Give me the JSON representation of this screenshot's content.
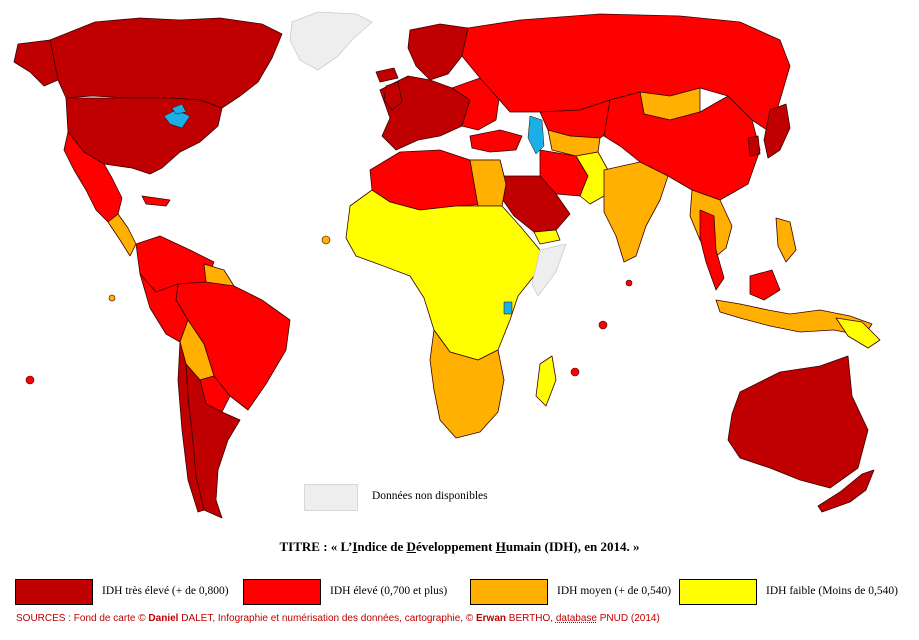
{
  "title": {
    "prefix": "TITRE : « L’",
    "w1_first": "I",
    "w1_rest": "ndice de ",
    "w2_first": "D",
    "w2_rest": "éveloppement ",
    "w3_first": "H",
    "w3_rest": "umain (IDH), en 2014. »"
  },
  "legend": {
    "items": [
      {
        "label": "IDH très élevé  (+ de 0,800)",
        "color": "#c00000"
      },
      {
        "label": "IDH élevé (0,700 et plus)",
        "color": "#ff0000"
      },
      {
        "label": "IDH moyen (+ de 0,540)",
        "color": "#ffb000"
      },
      {
        "label": "IDH faible (Moins de 0,540)",
        "color": "#ffff00"
      }
    ],
    "no_data": {
      "label": "Données non disponibles",
      "color": "#eeeeee"
    }
  },
  "sources": {
    "part1": "SOURCES : Fond de carte © ",
    "author1_first": "Daniel",
    "author1_last": " DALET, Infographie et numérisation des données, cartographie, © ",
    "author2_first": "Erwan",
    "author2_last": " BERTHO, ",
    "database": "database",
    "part_end": " PNUD (2014)"
  },
  "colors": {
    "very_high": "#c00000",
    "high": "#ff0000",
    "medium": "#ffb000",
    "low": "#ffff00",
    "no_data": "#eeeeee",
    "water": "#1ab0e6",
    "border": "#3a0000"
  }
}
